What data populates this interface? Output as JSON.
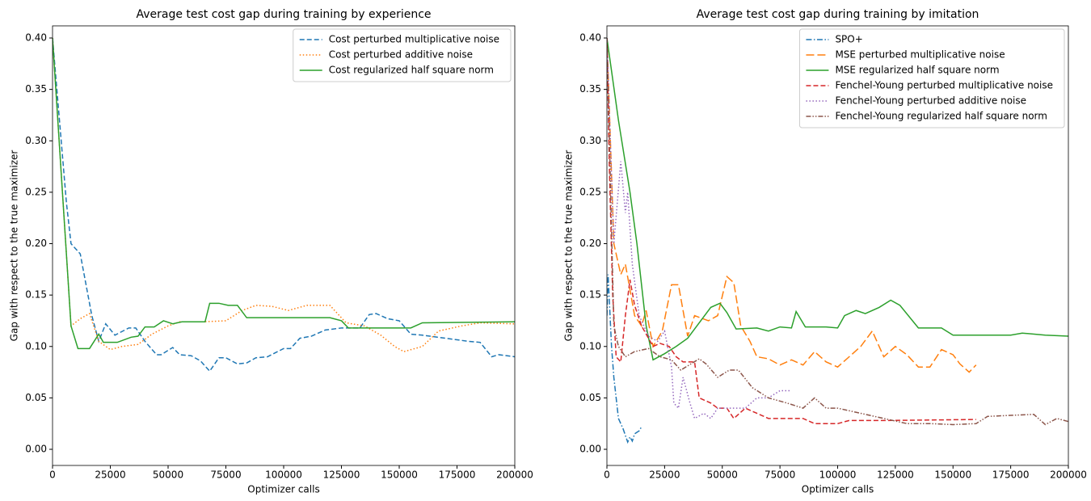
{
  "chart_data": [
    {
      "type": "line",
      "title": "Average test cost gap during training by experience",
      "xlabel": "Optimizer calls",
      "ylabel": "Gap with respect to the true maximizer",
      "xlim": [
        0,
        200000
      ],
      "ylim": [
        -0.0157,
        0.4118
      ],
      "xticks": [
        0,
        25000,
        50000,
        75000,
        100000,
        125000,
        150000,
        175000,
        200000
      ],
      "yticks": [
        {
          "value": 0,
          "label": "0.00"
        },
        {
          "value": 0.05,
          "label": "0.05"
        },
        {
          "value": 0.1,
          "label": "0.10"
        },
        {
          "value": 0.15,
          "label": "0.15"
        },
        {
          "value": 0.2,
          "label": "0.20"
        },
        {
          "value": 0.25,
          "label": "0.25"
        },
        {
          "value": 0.3,
          "label": "0.30"
        },
        {
          "value": 0.35,
          "label": "0.35"
        },
        {
          "value": 0.4,
          "label": "0.40"
        }
      ],
      "legend": "upper right",
      "series": [
        {
          "name": "Cost perturbed multiplicative noise",
          "color": "#1f77b4",
          "linestyle": "dashed",
          "x": [
            0,
            6000,
            8000,
            12000,
            17000,
            20000,
            23000,
            27000,
            33000,
            36000,
            40000,
            45000,
            47000,
            52000,
            55000,
            60000,
            64000,
            68000,
            72000,
            75000,
            80000,
            84000,
            88000,
            93000,
            100000,
            103000,
            107000,
            112000,
            118000,
            125000,
            133000,
            137000,
            140000,
            145000,
            150000,
            155000,
            160000,
            170000,
            180000,
            185000,
            190000,
            193000,
            200000
          ],
          "values": [
            0.4,
            0.24,
            0.2,
            0.19,
            0.13,
            0.105,
            0.122,
            0.111,
            0.118,
            0.118,
            0.105,
            0.092,
            0.092,
            0.099,
            0.092,
            0.091,
            0.086,
            0.076,
            0.089,
            0.089,
            0.083,
            0.084,
            0.089,
            0.09,
            0.098,
            0.098,
            0.108,
            0.11,
            0.116,
            0.118,
            0.118,
            0.131,
            0.132,
            0.127,
            0.125,
            0.112,
            0.111,
            0.108,
            0.105,
            0.104,
            0.09,
            0.092,
            0.09
          ]
        },
        {
          "name": "Cost perturbed additive noise",
          "color": "#ff7f0e",
          "linestyle": "dotted",
          "x": [
            0,
            8000,
            12000,
            16000,
            20000,
            25000,
            30000,
            37000,
            43000,
            50000,
            55000,
            65000,
            75000,
            82000,
            88000,
            95000,
            102000,
            110000,
            120000,
            127000,
            135000,
            142000,
            148000,
            152000,
            160000,
            167000,
            177000,
            185000,
            200000
          ],
          "values": [
            0.4,
            0.12,
            0.127,
            0.132,
            0.105,
            0.097,
            0.1,
            0.102,
            0.112,
            0.12,
            0.124,
            0.124,
            0.125,
            0.135,
            0.14,
            0.139,
            0.135,
            0.14,
            0.14,
            0.123,
            0.12,
            0.111,
            0.1,
            0.095,
            0.1,
            0.115,
            0.12,
            0.123,
            0.122
          ]
        },
        {
          "name": "Cost regularized half square norm",
          "color": "#2ca02c",
          "linestyle": "solid",
          "x": [
            0,
            8000,
            11000,
            16000,
            20000,
            22000,
            28000,
            34000,
            37000,
            40000,
            44000,
            48000,
            52000,
            56000,
            66000,
            68000,
            72000,
            76000,
            80000,
            84000,
            120000,
            125000,
            128000,
            155000,
            160000,
            200000
          ],
          "values": [
            0.4,
            0.12,
            0.098,
            0.098,
            0.112,
            0.104,
            0.104,
            0.109,
            0.11,
            0.119,
            0.119,
            0.125,
            0.122,
            0.124,
            0.124,
            0.142,
            0.142,
            0.14,
            0.14,
            0.128,
            0.128,
            0.125,
            0.118,
            0.118,
            0.123,
            0.124
          ]
        }
      ]
    },
    {
      "type": "line",
      "title": "Average test cost gap during training by imitation",
      "xlabel": "Optimizer calls",
      "ylabel": "Gap with respect to the true maximizer",
      "xlim": [
        0,
        200000
      ],
      "ylim": [
        -0.0157,
        0.4118
      ],
      "xticks": [
        0,
        25000,
        50000,
        75000,
        100000,
        125000,
        150000,
        175000,
        200000
      ],
      "yticks": [
        {
          "value": 0,
          "label": "0.00"
        },
        {
          "value": 0.05,
          "label": "0.05"
        },
        {
          "value": 0.1,
          "label": "0.10"
        },
        {
          "value": 0.15,
          "label": "0.15"
        },
        {
          "value": 0.2,
          "label": "0.20"
        },
        {
          "value": 0.25,
          "label": "0.25"
        },
        {
          "value": 0.3,
          "label": "0.30"
        },
        {
          "value": 0.35,
          "label": "0.35"
        },
        {
          "value": 0.4,
          "label": "0.40"
        }
      ],
      "legend": "upper right",
      "series": [
        {
          "name": "SPO+",
          "color": "#1f77b4",
          "linestyle": "dashdot",
          "x": [
            0,
            500,
            2000,
            3000,
            4000,
            5000,
            7000,
            9000,
            10000,
            11000,
            12000,
            14000,
            15000
          ],
          "values": [
            0.13,
            0.17,
            0.1,
            0.07,
            0.05,
            0.03,
            0.02,
            0.007,
            0.012,
            0.008,
            0.015,
            0.018,
            0.022
          ]
        },
        {
          "name": "MSE perturbed multiplicative noise",
          "color": "#ff7f0e",
          "linestyle": "longdash",
          "x": [
            0,
            3000,
            6000,
            8000,
            12000,
            15000,
            17000,
            20000,
            24000,
            28000,
            31000,
            35000,
            38000,
            44000,
            48000,
            52000,
            55000,
            58000,
            62000,
            65000,
            70000,
            75000,
            80000,
            85000,
            90000,
            95000,
            100000,
            105000,
            110000,
            115000,
            120000,
            125000,
            130000,
            135000,
            140000,
            145000,
            150000,
            153000,
            157000,
            160000
          ],
          "values": [
            0.4,
            0.2,
            0.17,
            0.18,
            0.13,
            0.12,
            0.135,
            0.1,
            0.115,
            0.16,
            0.16,
            0.11,
            0.13,
            0.125,
            0.13,
            0.168,
            0.162,
            0.12,
            0.105,
            0.09,
            0.088,
            0.082,
            0.087,
            0.082,
            0.095,
            0.085,
            0.08,
            0.09,
            0.1,
            0.115,
            0.09,
            0.1,
            0.092,
            0.08,
            0.08,
            0.097,
            0.092,
            0.083,
            0.075,
            0.082
          ]
        },
        {
          "name": "MSE regularized half square norm",
          "color": "#2ca02c",
          "linestyle": "solid",
          "x": [
            0,
            5000,
            10000,
            13000,
            17000,
            20000,
            25000,
            30000,
            35000,
            45000,
            49000,
            52000,
            56000,
            65000,
            70000,
            75000,
            80000,
            82000,
            86000,
            95000,
            100000,
            103000,
            108000,
            112000,
            118000,
            123000,
            127000,
            135000,
            145000,
            150000,
            175000,
            180000,
            190000,
            200000
          ],
          "values": [
            0.4,
            0.32,
            0.25,
            0.2,
            0.12,
            0.087,
            0.093,
            0.1,
            0.108,
            0.138,
            0.142,
            0.133,
            0.117,
            0.118,
            0.115,
            0.119,
            0.118,
            0.134,
            0.119,
            0.119,
            0.118,
            0.13,
            0.135,
            0.132,
            0.138,
            0.145,
            0.14,
            0.118,
            0.118,
            0.111,
            0.111,
            0.113,
            0.111,
            0.11
          ]
        },
        {
          "name": "Fenchel-Young perturbed multiplicative noise",
          "color": "#d62728",
          "linestyle": "dashed",
          "x": [
            0,
            1000,
            2500,
            4000,
            6000,
            8000,
            10000,
            12000,
            15000,
            20000,
            23000,
            27000,
            30000,
            33000,
            38000,
            40000,
            45000,
            48000,
            52000,
            55000,
            60000,
            65000,
            70000,
            85000,
            90000,
            100000,
            105000,
            120000,
            160000
          ],
          "values": [
            0.4,
            0.28,
            0.15,
            0.09,
            0.085,
            0.13,
            0.165,
            0.14,
            0.12,
            0.1,
            0.103,
            0.1,
            0.09,
            0.085,
            0.085,
            0.05,
            0.045,
            0.04,
            0.04,
            0.03,
            0.04,
            0.035,
            0.03,
            0.03,
            0.025,
            0.025,
            0.028,
            0.028,
            0.029
          ]
        },
        {
          "name": "Fenchel-Young perturbed additive noise",
          "color": "#9467bd",
          "linestyle": "dotted",
          "x": [
            0,
            3000,
            6000,
            8000,
            9000,
            11000,
            14000,
            18000,
            22000,
            25000,
            28000,
            29000,
            31000,
            33000,
            36000,
            38000,
            42000,
            45000,
            48000,
            60000,
            65000,
            70000,
            75000,
            80000
          ],
          "values": [
            0.4,
            0.2,
            0.28,
            0.23,
            0.25,
            0.18,
            0.13,
            0.11,
            0.105,
            0.115,
            0.08,
            0.045,
            0.04,
            0.07,
            0.045,
            0.03,
            0.035,
            0.03,
            0.04,
            0.04,
            0.05,
            0.05,
            0.057,
            0.057
          ]
        },
        {
          "name": "Fenchel-Young regularized half square norm",
          "color": "#8c564b",
          "linestyle": "dashdotdot",
          "x": [
            0,
            3000,
            5000,
            8000,
            12000,
            18000,
            23000,
            28000,
            32000,
            40000,
            43000,
            48000,
            53000,
            57000,
            63000,
            70000,
            78000,
            85000,
            90000,
            95000,
            100000,
            110000,
            120000,
            130000,
            140000,
            150000,
            160000,
            165000,
            175000,
            185000,
            190000,
            195000,
            200000
          ],
          "values": [
            0.4,
            0.12,
            0.1,
            0.09,
            0.095,
            0.098,
            0.09,
            0.087,
            0.077,
            0.088,
            0.083,
            0.07,
            0.077,
            0.077,
            0.06,
            0.05,
            0.045,
            0.04,
            0.05,
            0.04,
            0.04,
            0.035,
            0.03,
            0.025,
            0.025,
            0.024,
            0.025,
            0.032,
            0.033,
            0.034,
            0.024,
            0.03,
            0.027
          ]
        }
      ]
    }
  ]
}
